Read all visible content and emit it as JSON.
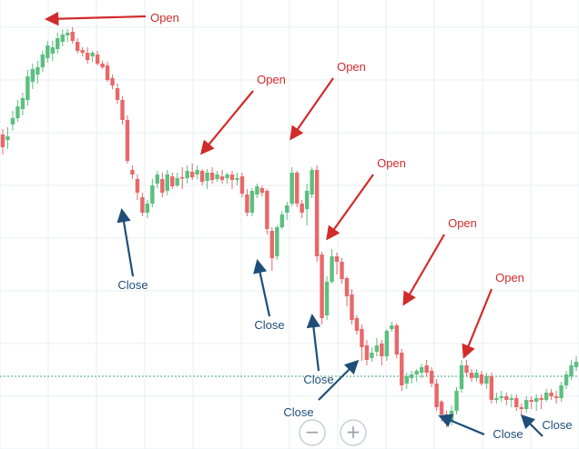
{
  "chart_data": {
    "type": "candlestick",
    "title": "",
    "xlabel": "",
    "ylabel": "",
    "grid": true,
    "colors": {
      "up": "#5cbf7f",
      "down": "#e8686a",
      "grid": "#e9edf2",
      "baseline": "#3aa86b",
      "open_arrow": "#d22b2b",
      "close_arrow": "#1f4e79"
    },
    "candles": [
      [
        136,
        150,
        130,
        158
      ],
      [
        142,
        138,
        128,
        152
      ],
      [
        125,
        118,
        110,
        132
      ],
      [
        118,
        105,
        98,
        122
      ],
      [
        108,
        96,
        90,
        115
      ],
      [
        98,
        72,
        65,
        104
      ],
      [
        78,
        64,
        58,
        86
      ],
      [
        70,
        62,
        55,
        80
      ],
      [
        62,
        48,
        44,
        67
      ],
      [
        52,
        38,
        33,
        57
      ],
      [
        47,
        40,
        33,
        55
      ],
      [
        42,
        30,
        24,
        47
      ],
      [
        34,
        26,
        20,
        39
      ],
      [
        27,
        24,
        20,
        34
      ],
      [
        23,
        33,
        18,
        36
      ],
      [
        34,
        44,
        30,
        47
      ],
      [
        43,
        46,
        40,
        50
      ],
      [
        46,
        54,
        40,
        58
      ],
      [
        50,
        46,
        44,
        56
      ],
      [
        48,
        58,
        44,
        60
      ],
      [
        58,
        62,
        55,
        64
      ],
      [
        60,
        76,
        56,
        78
      ],
      [
        74,
        82,
        70,
        86
      ],
      [
        85,
        98,
        80,
        102
      ],
      [
        98,
        120,
        94,
        125
      ],
      [
        120,
        165,
        115,
        168
      ],
      [
        175,
        180,
        170,
        185
      ],
      [
        185,
        200,
        180,
        208
      ],
      [
        205,
        222,
        200,
        226
      ],
      [
        222,
        212,
        208,
        228
      ],
      [
        212,
        192,
        185,
        216
      ],
      [
        190,
        180,
        176,
        195
      ],
      [
        185,
        200,
        178,
        205
      ],
      [
        198,
        180,
        175,
        203
      ],
      [
        182,
        193,
        178,
        196
      ],
      [
        192,
        184,
        178,
        194
      ],
      [
        183,
        183,
        172,
        196
      ],
      [
        184,
        176,
        170,
        190
      ],
      [
        177,
        183,
        168,
        186
      ],
      [
        180,
        175,
        170,
        185
      ],
      [
        176,
        188,
        174,
        192
      ],
      [
        187,
        178,
        174,
        196
      ],
      [
        178,
        186,
        172,
        190
      ],
      [
        185,
        180,
        176,
        188
      ],
      [
        182,
        186,
        175,
        190
      ],
      [
        184,
        180,
        178,
        190
      ],
      [
        180,
        186,
        176,
        196
      ],
      [
        186,
        184,
        178,
        192
      ],
      [
        182,
        201,
        178,
        205
      ],
      [
        202,
        222,
        196,
        226
      ],
      [
        222,
        198,
        195,
        226
      ],
      [
        202,
        193,
        190,
        206
      ],
      [
        195,
        200,
        192,
        204
      ],
      [
        198,
        240,
        196,
        246
      ],
      [
        242,
        272,
        238,
        286
      ],
      [
        270,
        238,
        236,
        274
      ],
      [
        238,
        224,
        220,
        240
      ],
      [
        222,
        214,
        210,
        230
      ],
      [
        212,
        178,
        172,
        215
      ],
      [
        178,
        212,
        176,
        216
      ],
      [
        212,
        222,
        208,
        228
      ],
      [
        218,
        198,
        190,
        236
      ],
      [
        202,
        175,
        172,
        206
      ],
      [
        175,
        270,
        170,
        276
      ],
      [
        268,
        338,
        265,
        345
      ],
      [
        335,
        298,
        292,
        340
      ],
      [
        298,
        270,
        262,
        300
      ],
      [
        270,
        276,
        266,
        290
      ],
      [
        276,
        295,
        272,
        300
      ],
      [
        294,
        314,
        292,
        325
      ],
      [
        312,
        340,
        306,
        345
      ],
      [
        338,
        352,
        335,
        356
      ],
      [
        350,
        370,
        345,
        385
      ],
      [
        368,
        384,
        362,
        390
      ],
      [
        382,
        376,
        370,
        386
      ],
      [
        375,
        368,
        360,
        380
      ],
      [
        366,
        380,
        362,
        390
      ],
      [
        380,
        352,
        350,
        385
      ],
      [
        350,
        346,
        342,
        353
      ],
      [
        346,
        378,
        344,
        382
      ],
      [
        376,
        412,
        372,
        418
      ],
      [
        410,
        402,
        398,
        416
      ],
      [
        404,
        400,
        396,
        410
      ],
      [
        400,
        396,
        394,
        408
      ],
      [
        398,
        392,
        388,
        404
      ],
      [
        390,
        398,
        384,
        402
      ],
      [
        396,
        410,
        392,
        414
      ],
      [
        410,
        436,
        405,
        440
      ],
      [
        430,
        444,
        428,
        452
      ],
      [
        444,
        454,
        440,
        458
      ],
      [
        452,
        440,
        434,
        456
      ],
      [
        440,
        418,
        414,
        444
      ],
      [
        416,
        390,
        384,
        420
      ],
      [
        390,
        398,
        384,
        402
      ],
      [
        398,
        404,
        394,
        408
      ],
      [
        404,
        398,
        394,
        408
      ],
      [
        400,
        410,
        396,
        412
      ],
      [
        410,
        402,
        398,
        416
      ],
      [
        402,
        428,
        398,
        432
      ],
      [
        428,
        426,
        420,
        432
      ],
      [
        426,
        424,
        418,
        430
      ],
      [
        424,
        428,
        420,
        434
      ],
      [
        428,
        426,
        422,
        436
      ],
      [
        426,
        436,
        422,
        440
      ],
      [
        436,
        438,
        432,
        444
      ],
      [
        438,
        428,
        424,
        442
      ],
      [
        428,
        430,
        424,
        438
      ],
      [
        430,
        426,
        422,
        440
      ],
      [
        426,
        428,
        422,
        438
      ],
      [
        428,
        420,
        416,
        430
      ],
      [
        420,
        424,
        416,
        428
      ],
      [
        424,
        426,
        418,
        432
      ],
      [
        426,
        412,
        408,
        430
      ],
      [
        412,
        400,
        396,
        416
      ],
      [
        402,
        390,
        384,
        406
      ],
      [
        392,
        386,
        380,
        396
      ]
    ],
    "annotations": [
      {
        "label": "Open",
        "kind": "open",
        "tail": [
          160,
          18
        ],
        "head": [
          52,
          21
        ]
      },
      {
        "label": "Open",
        "kind": "open",
        "tail": [
          278,
          100
        ],
        "head": [
          222,
          168
        ]
      },
      {
        "label": "Open",
        "kind": "open",
        "tail": [
          366,
          86
        ],
        "head": [
          320,
          152
        ]
      },
      {
        "label": "Open",
        "kind": "open",
        "tail": [
          410,
          192
        ],
        "head": [
          360,
          262
        ]
      },
      {
        "label": "Open",
        "kind": "open",
        "tail": [
          488,
          258
        ],
        "head": [
          444,
          334
        ]
      },
      {
        "label": "Open",
        "kind": "open",
        "tail": [
          540,
          318
        ],
        "head": [
          510,
          392
        ]
      },
      {
        "label": "Close",
        "kind": "close",
        "tail": [
          146,
          304
        ],
        "head": [
          134,
          232
        ]
      },
      {
        "label": "Close",
        "kind": "close",
        "tail": [
          296,
          348
        ],
        "head": [
          283,
          288
        ]
      },
      {
        "label": "Close",
        "kind": "close",
        "tail": [
          350,
          408
        ],
        "head": [
          343,
          348
        ]
      },
      {
        "label": "Close",
        "kind": "close",
        "tail": [
          350,
          440
        ],
        "head": [
          392,
          398
        ]
      },
      {
        "label": "Close",
        "kind": "close",
        "tail": [
          532,
          478
        ],
        "head": [
          484,
          458
        ]
      },
      {
        "label": "Close",
        "kind": "close",
        "tail": [
          596,
          480
        ],
        "head": [
          574,
          458
        ]
      }
    ]
  },
  "zoom_controls": {
    "minus_symbol": "−",
    "plus_symbol": "+"
  }
}
